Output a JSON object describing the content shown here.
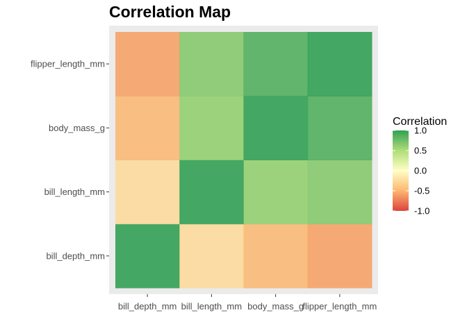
{
  "chart_data": {
    "type": "heatmap",
    "title": "Correlation Map",
    "xlabel": "",
    "ylabel": "",
    "x_categories": [
      "bill_depth_mm",
      "bill_length_mm",
      "body_mass_g",
      "flipper_length_mm"
    ],
    "y_categories": [
      "bill_depth_mm",
      "bill_length_mm",
      "body_mass_g",
      "flipper_length_mm"
    ],
    "values": [
      [
        1.0,
        -0.24,
        -0.47,
        -0.58
      ],
      [
        -0.24,
        1.0,
        0.6,
        0.66
      ],
      [
        -0.47,
        0.6,
        1.0,
        0.87
      ],
      [
        -0.58,
        0.66,
        0.87,
        1.0
      ]
    ],
    "legend": {
      "title": "Correlation",
      "ticks": [
        1.0,
        0.5,
        0.0,
        -0.5,
        -1.0
      ],
      "tick_labels": [
        "1.0",
        "0.5",
        "0.0",
        "-0.5",
        "-1.0"
      ],
      "limits": [
        -1,
        1
      ],
      "position": "right"
    },
    "color_scale": {
      "low": "#d73027",
      "mid_low": "#fdae61",
      "mid": "#ffffbf",
      "mid_high": "#a6d96a",
      "high": "#1a9641"
    },
    "panel_background": "#ebebeb",
    "grid": false
  }
}
